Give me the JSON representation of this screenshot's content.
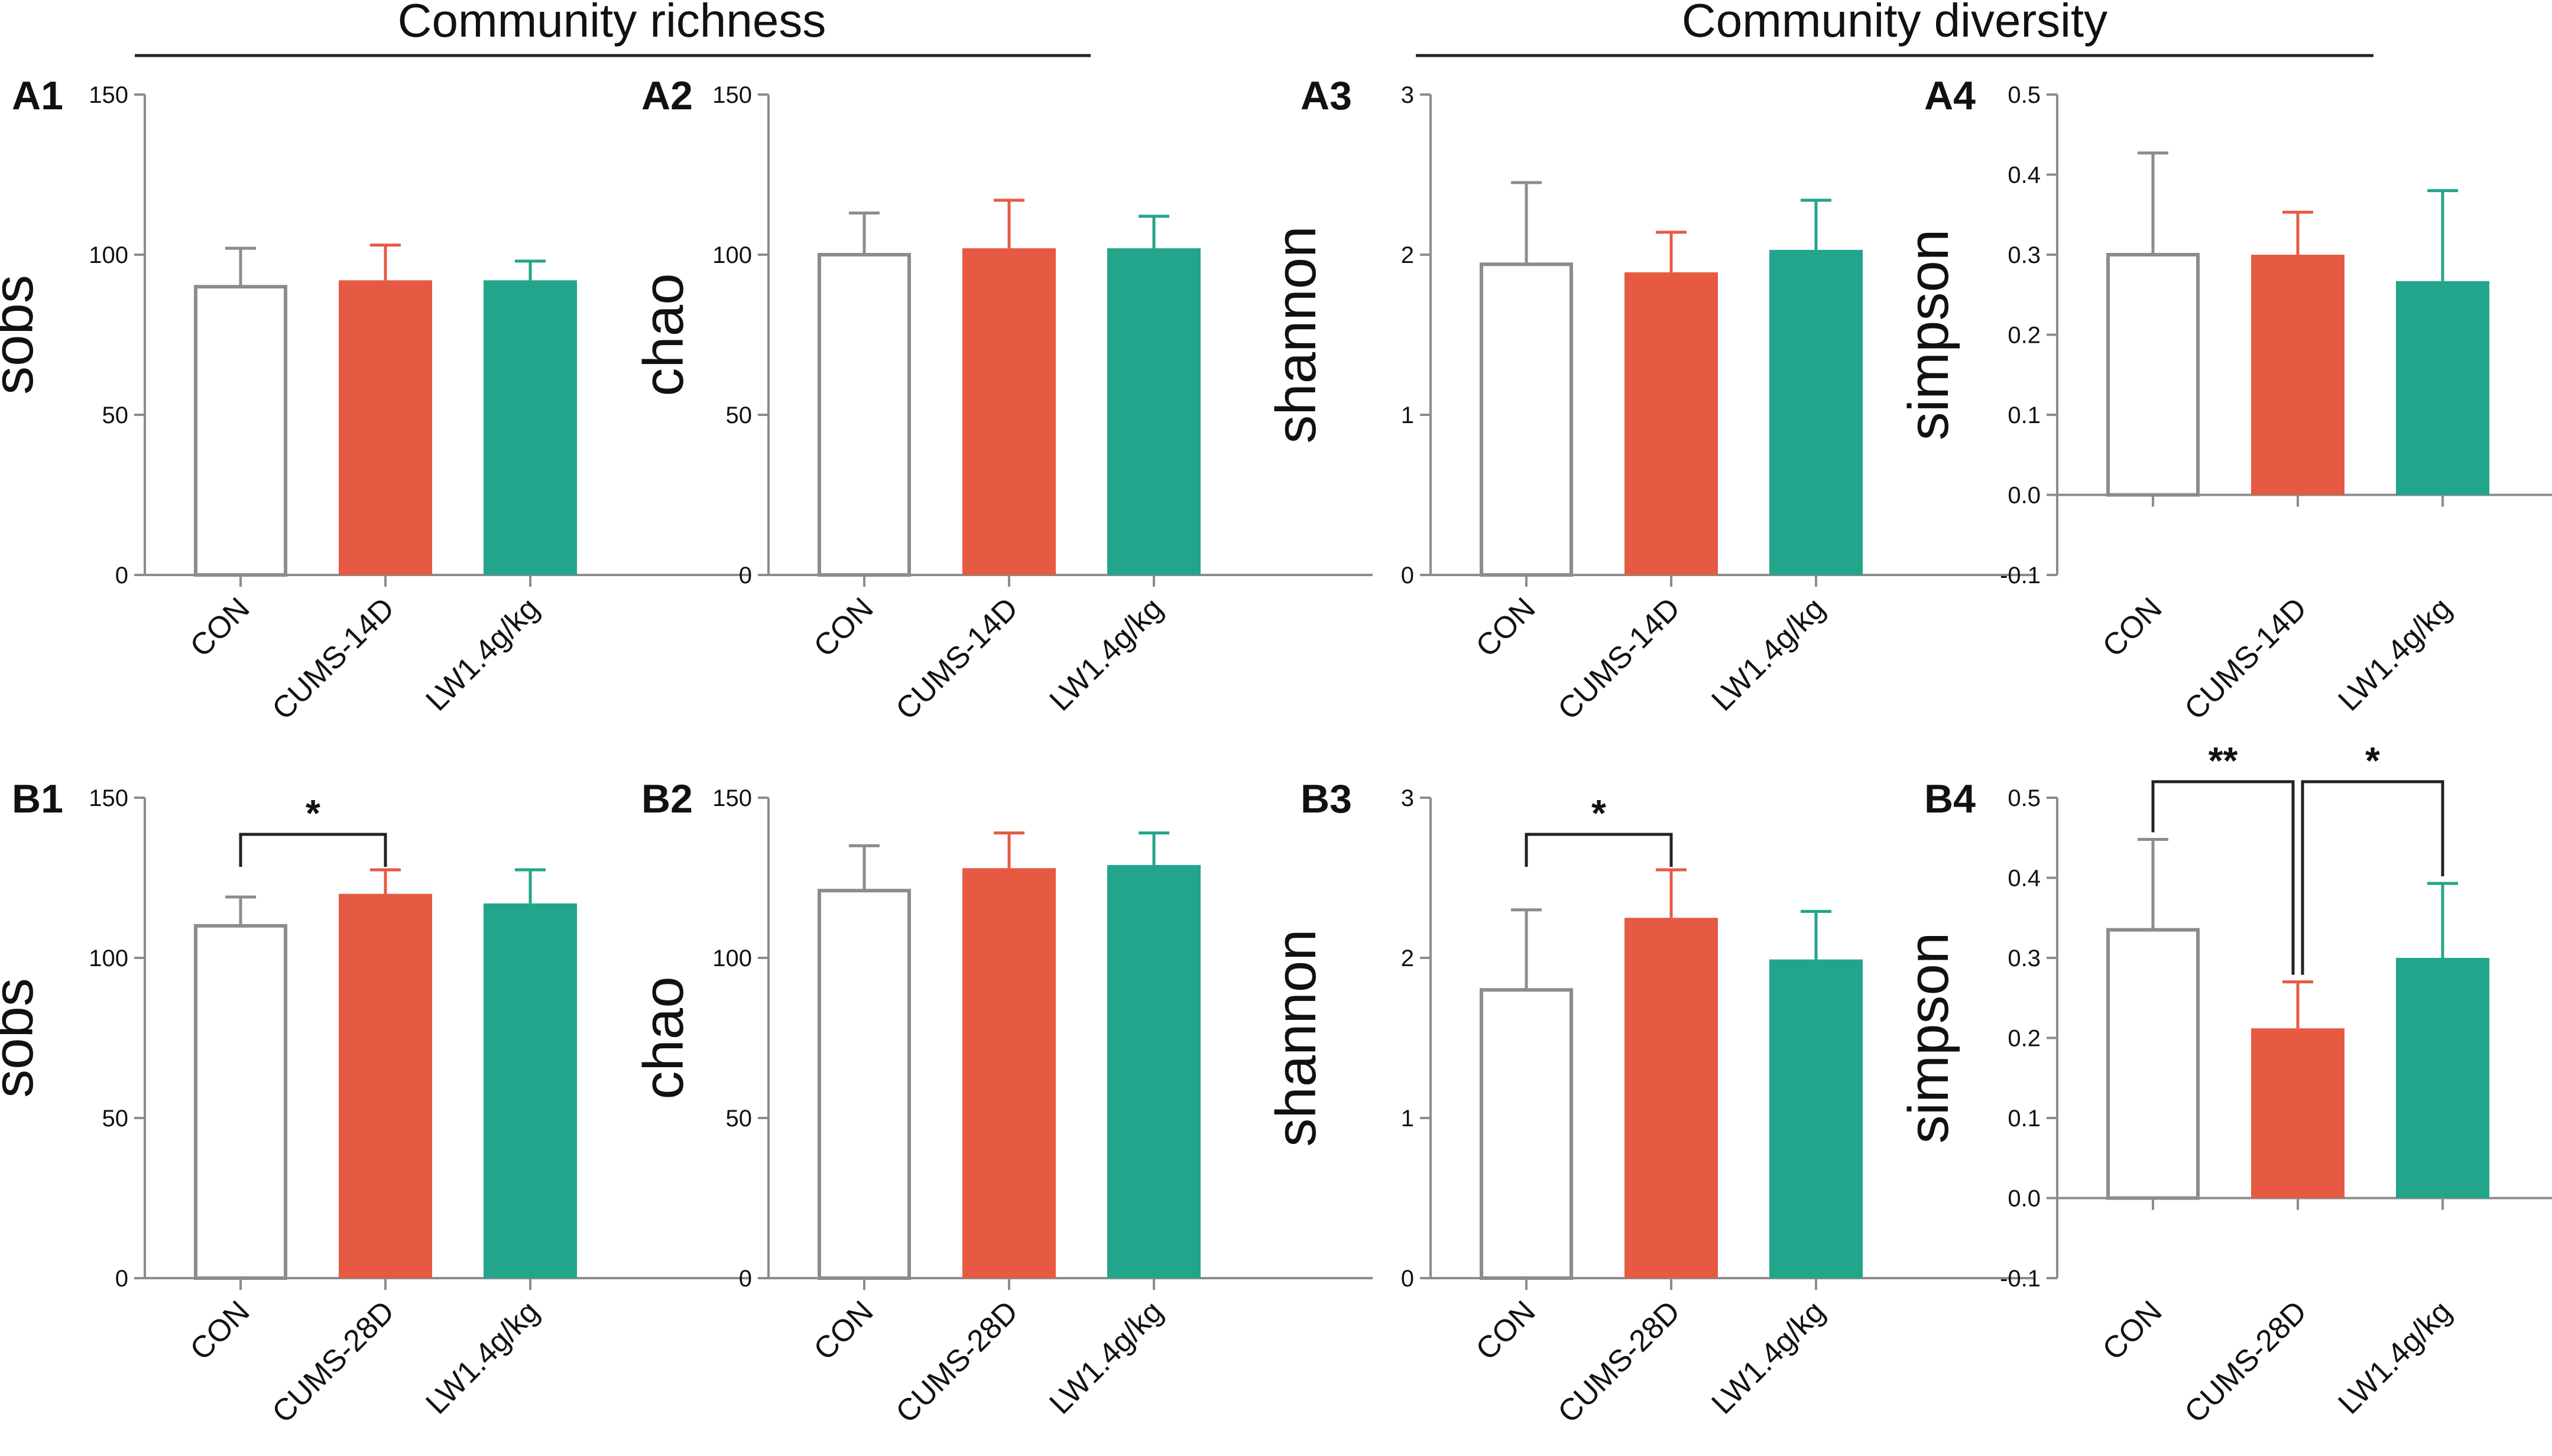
{
  "figure": {
    "section_titles": [
      "Community richness",
      "Community diversity"
    ],
    "colors": {
      "CON_fill": "#ffffff",
      "CON_stroke": "#8c8c8c",
      "CUMS": "#e65a43",
      "LW": "#22a58a",
      "axis": "#8c8c8c",
      "bracket": "#222222"
    }
  },
  "chart_data": [
    {
      "panel": "A1",
      "type": "bar",
      "ylabel": "sobs",
      "ylim": [
        0,
        150
      ],
      "yticks": [
        0,
        50,
        100,
        150
      ],
      "categories": [
        "CON",
        "CUMS-14D",
        "LW1.4g/kg"
      ],
      "values": [
        90,
        92,
        92
      ],
      "errors": [
        12,
        11,
        6
      ],
      "significance": []
    },
    {
      "panel": "A2",
      "type": "bar",
      "ylabel": "chao",
      "ylim": [
        0,
        150
      ],
      "yticks": [
        0,
        50,
        100,
        150
      ],
      "categories": [
        "CON",
        "CUMS-14D",
        "LW1.4g/kg"
      ],
      "values": [
        100,
        102,
        102
      ],
      "errors": [
        13,
        15,
        10
      ],
      "significance": []
    },
    {
      "panel": "A3",
      "type": "bar",
      "ylabel": "shannon",
      "ylim": [
        0,
        3
      ],
      "yticks": [
        0,
        1,
        2,
        3
      ],
      "categories": [
        "CON",
        "CUMS-14D",
        "LW1.4g/kg"
      ],
      "values": [
        1.94,
        1.89,
        2.03
      ],
      "errors": [
        0.51,
        0.25,
        0.31
      ],
      "significance": []
    },
    {
      "panel": "A4",
      "type": "bar",
      "ylabel": "simpson",
      "ylim": [
        -0.1,
        0.5
      ],
      "yticks": [
        -0.1,
        0.0,
        0.1,
        0.2,
        0.3,
        0.4,
        0.5
      ],
      "categories": [
        "CON",
        "CUMS-14D",
        "LW1.4g/kg"
      ],
      "values": [
        0.3,
        0.3,
        0.267
      ],
      "errors": [
        0.127,
        0.053,
        0.113
      ],
      "significance": []
    },
    {
      "panel": "B1",
      "type": "bar",
      "ylabel": "sobs",
      "ylim": [
        0,
        150
      ],
      "yticks": [
        0,
        50,
        100,
        150
      ],
      "categories": [
        "CON",
        "CUMS-28D",
        "LW1.4g/kg"
      ],
      "values": [
        110,
        120,
        117
      ],
      "errors": [
        9,
        7.5,
        10.5
      ],
      "significance": [
        {
          "from": 0,
          "to": 1,
          "label": "*"
        }
      ]
    },
    {
      "panel": "B2",
      "type": "bar",
      "ylabel": "chao",
      "ylim": [
        0,
        150
      ],
      "yticks": [
        0,
        50,
        100,
        150
      ],
      "categories": [
        "CON",
        "CUMS-28D",
        "LW1.4g/kg"
      ],
      "values": [
        121,
        128,
        129
      ],
      "errors": [
        14,
        11,
        10
      ],
      "significance": []
    },
    {
      "panel": "B3",
      "type": "bar",
      "ylabel": "shannon",
      "ylim": [
        0,
        3
      ],
      "yticks": [
        0,
        1,
        2,
        3
      ],
      "categories": [
        "CON",
        "CUMS-28D",
        "LW1.4g/kg"
      ],
      "values": [
        1.8,
        2.25,
        1.99
      ],
      "errors": [
        0.5,
        0.3,
        0.3
      ],
      "significance": [
        {
          "from": 0,
          "to": 1,
          "label": "*"
        }
      ]
    },
    {
      "panel": "B4",
      "type": "bar",
      "ylabel": "simpson",
      "ylim": [
        -0.1,
        0.5
      ],
      "yticks": [
        -0.1,
        0.0,
        0.1,
        0.2,
        0.3,
        0.4,
        0.5
      ],
      "categories": [
        "CON",
        "CUMS-28D",
        "LW1.4g/kg"
      ],
      "values": [
        0.335,
        0.212,
        0.3
      ],
      "errors": [
        0.113,
        0.058,
        0.093
      ],
      "significance": [
        {
          "from": 0,
          "to": 1,
          "label": "**"
        },
        {
          "from": 1,
          "to": 2,
          "label": "*"
        }
      ]
    }
  ]
}
